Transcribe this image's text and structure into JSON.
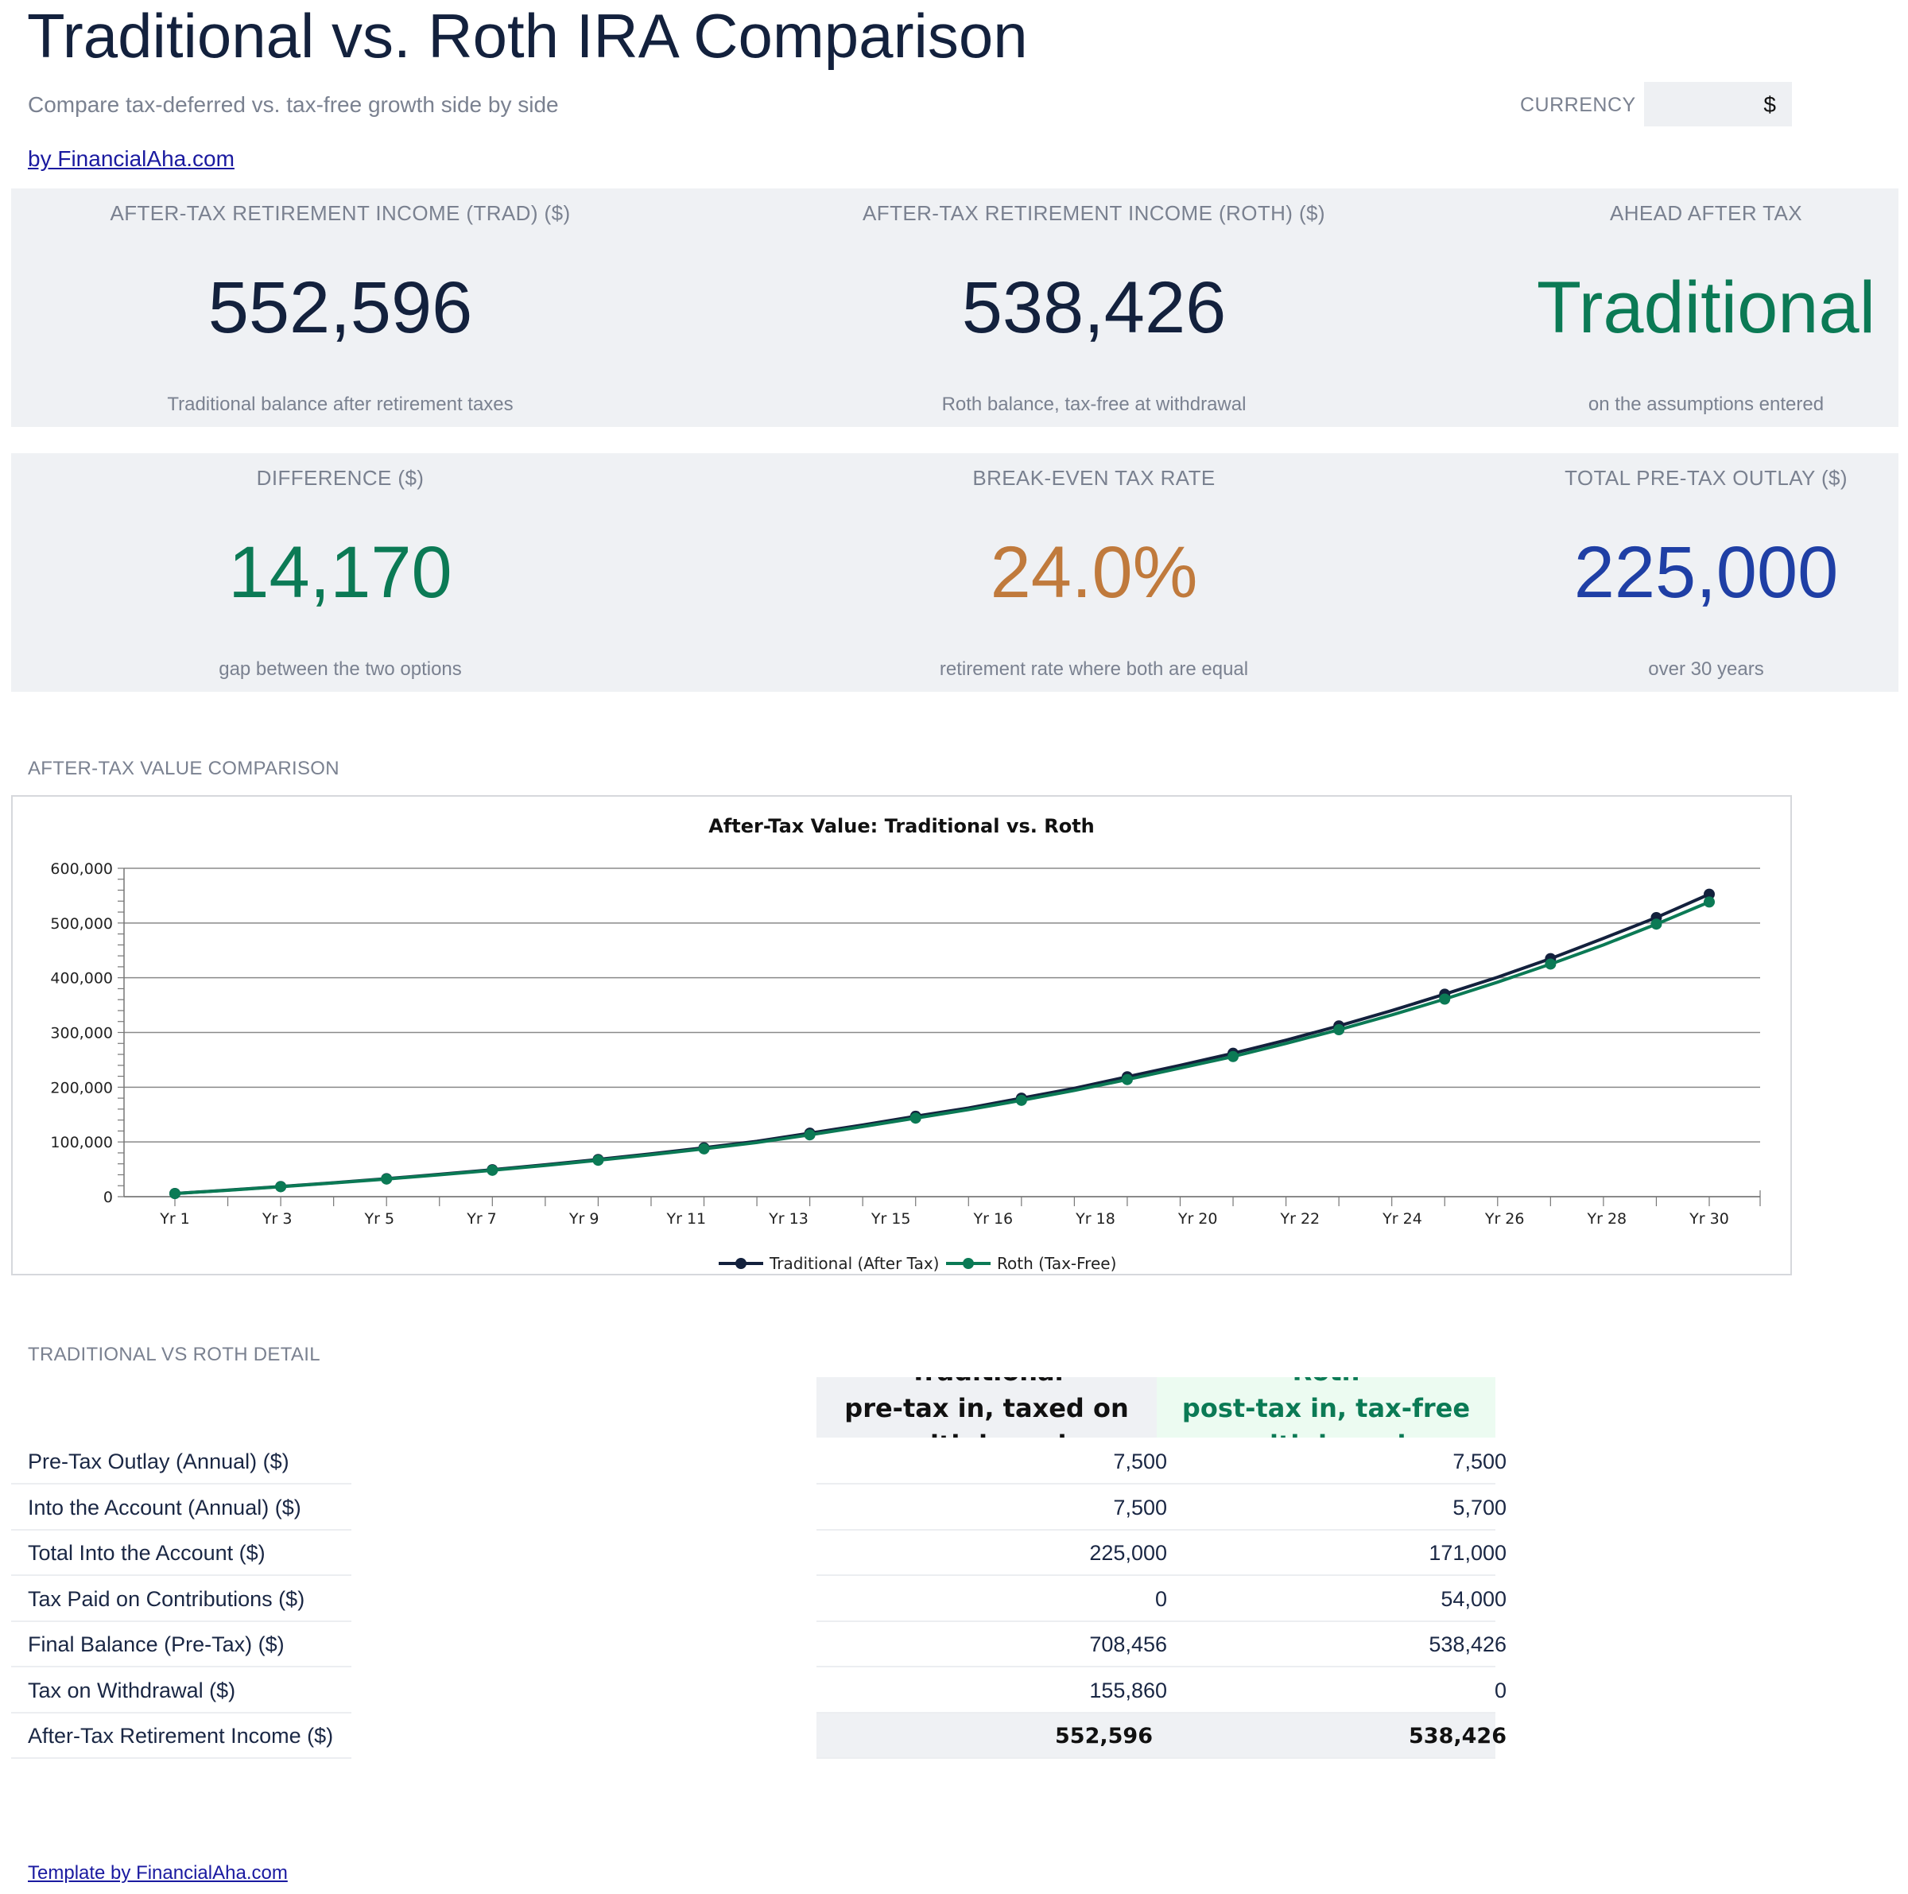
{
  "header": {
    "title": "Traditional vs. Roth IRA Comparison",
    "subtitle": "Compare tax-deferred vs. tax-free growth side by side",
    "byline": "by FinancialAha.com",
    "currency_label": "CURRENCY",
    "currency_value": "$"
  },
  "kpis_row1": [
    {
      "label": "AFTER-TAX RETIREMENT INCOME (TRAD) ($)",
      "value": "552,596",
      "note": "Traditional balance after retirement taxes",
      "color": "#13213d"
    },
    {
      "label": "AFTER-TAX RETIREMENT INCOME (ROTH) ($)",
      "value": "538,426",
      "note": "Roth balance, tax-free at withdrawal",
      "color": "#13213d"
    },
    {
      "label": "AHEAD AFTER TAX",
      "value": "Traditional",
      "note": "on the assumptions entered",
      "color": "#0b7a55"
    }
  ],
  "kpis_row2": [
    {
      "label": "DIFFERENCE ($)",
      "value": "14,170",
      "note": "gap between the two options",
      "color": "#0b7a55"
    },
    {
      "label": "BREAK-EVEN TAX RATE",
      "value": "24.0%",
      "note": "retirement rate where both are equal",
      "color": "#c07a3c"
    },
    {
      "label": "TOTAL PRE-TAX OUTLAY ($)",
      "value": "225,000",
      "note": "over 30 years",
      "color": "#1f3fa5"
    }
  ],
  "chart_section_label": "AFTER-TAX VALUE COMPARISON",
  "chart_data": {
    "type": "line",
    "title": "After-Tax Value: Traditional vs. Roth",
    "x": [
      1,
      2,
      3,
      4,
      5,
      6,
      7,
      8,
      9,
      10,
      11,
      12,
      13,
      14,
      15,
      16,
      17,
      18,
      19,
      20,
      21,
      22,
      23,
      24,
      25,
      26,
      27,
      28,
      29,
      30
    ],
    "x_tick_labels": [
      "Yr 1",
      "Yr 3",
      "Yr 5",
      "Yr 7",
      "Yr 9",
      "Yr 11",
      "Yr 13",
      "Yr 15",
      "Yr 16",
      "Yr 18",
      "Yr 20",
      "Yr 22",
      "Yr 24",
      "Yr 26",
      "Yr 28",
      "Yr 30"
    ],
    "ylim": [
      0,
      600000
    ],
    "y_ticks": [
      0,
      100000,
      200000,
      300000,
      400000,
      500000,
      600000
    ],
    "y_tick_labels": [
      "0",
      "100,000",
      "200,000",
      "300,000",
      "400,000",
      "500,000",
      "600,000"
    ],
    "grid": true,
    "legend": "bottom",
    "series": [
      {
        "name": "Traditional (After Tax)",
        "color": "#13213d",
        "values": [
          5800,
          12000,
          18600,
          25500,
          32900,
          40800,
          49300,
          58300,
          68000,
          78300,
          89400,
          101200,
          116000,
          131000,
          147000,
          162000,
          180000,
          198000,
          219000,
          240000,
          262000,
          286000,
          312000,
          340000,
          370000,
          401000,
          435000,
          472000,
          510000,
          552596
        ]
      },
      {
        "name": "Roth (Tax-Free)",
        "color": "#0b7a55",
        "values": [
          5700,
          11700,
          18200,
          25000,
          32200,
          39900,
          48200,
          57000,
          66500,
          76600,
          87400,
          98900,
          113000,
          128000,
          143500,
          159000,
          176000,
          194000,
          214000,
          235000,
          256000,
          280000,
          305000,
          332000,
          361000,
          392000,
          425000,
          460000,
          498000,
          538426
        ]
      }
    ]
  },
  "detail_section_label": "TRADITIONAL VS ROTH DETAIL",
  "detail_table": {
    "trad_header": "Traditional\npre-tax in, taxed on\nwithdrawal",
    "roth_header": "Roth\npost-tax in, tax-free\nwithdrawal",
    "rows": [
      {
        "label": "Pre-Tax Outlay (Annual) ($)",
        "trad": "7,500",
        "roth": "7,500"
      },
      {
        "label": "Into the Account (Annual) ($)",
        "trad": "7,500",
        "roth": "5,700"
      },
      {
        "label": "Total Into the Account ($)",
        "trad": "225,000",
        "roth": "171,000"
      },
      {
        "label": "Tax Paid on Contributions ($)",
        "trad": "0",
        "roth": "54,000"
      },
      {
        "label": "Final Balance (Pre-Tax) ($)",
        "trad": "708,456",
        "roth": "538,426"
      },
      {
        "label": "Tax on Withdrawal ($)",
        "trad": "155,860",
        "roth": "0"
      },
      {
        "label": "After-Tax Retirement Income ($)",
        "trad": "552,596",
        "roth": "538,426"
      }
    ]
  },
  "footer": {
    "link": "Template by FinancialAha.com"
  }
}
